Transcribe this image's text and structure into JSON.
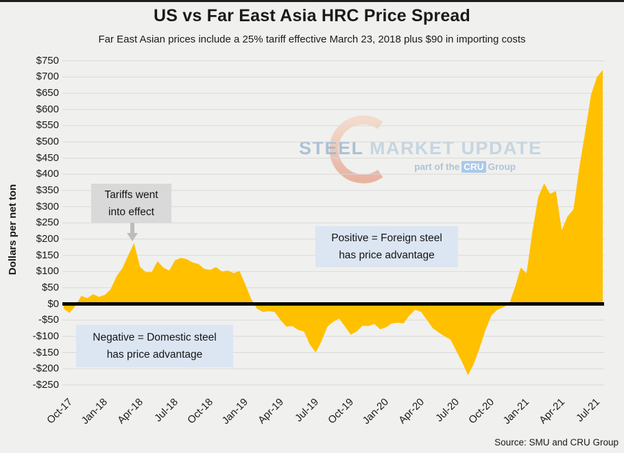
{
  "header": {
    "title": "US vs Far East Asia HRC Price Spread",
    "subtitle": "Far East Asian prices include a 25% tariff effective March 23, 2018 plus $90 in importing costs"
  },
  "annotations": {
    "tariff": {
      "line1": "Tariffs went",
      "line2": "into effect"
    },
    "positive": {
      "line1": "Positive = Foreign steel",
      "line2": "has price advantage"
    },
    "negative": {
      "line1": "Negative = Domestic steel",
      "line2": "has price advantage"
    }
  },
  "watermark": {
    "steel": "STEEL",
    "market_update": " MARKET UPDATE",
    "part_of_the": "part of the",
    "cru": "CRU",
    "group": "Group",
    "crescent_icon": "crescent-logo-icon"
  },
  "source": "Source: SMU and CRU Group",
  "colors": {
    "background": "#f0f0ee",
    "gridline": "#d9d9d9",
    "area": "#ffc000",
    "zero_line": "#000000",
    "note_gray_bg": "#d9d9d9",
    "note_blue_bg": "#dce6f2",
    "arrow": "#bdbdbd",
    "watermark_text": "#a9c2d8",
    "crescent_top": "#f5c0a0",
    "crescent_bottom": "#e0603a",
    "cru_badge_bg": "#a9c9ea"
  },
  "chart_data": {
    "type": "area",
    "title": "US vs Far East Asia HRC Price Spread",
    "xlabel": "",
    "ylabel": "Dollars per net ton",
    "ylim": [
      -250,
      750
    ],
    "grid": "horizontal",
    "legend": "none",
    "x_range": [
      "Oct-2017",
      "Aug-2021"
    ],
    "x_interval": "semi-monthly (two points per month)",
    "x_tick_labels": [
      "Oct-17",
      "Jan-18",
      "Apr-18",
      "Jul-18",
      "Oct-18",
      "Jan-19",
      "Apr-19",
      "Jul-19",
      "Oct-19",
      "Jan-20",
      "Apr-20",
      "Jul-20",
      "Oct-20",
      "Jan-21",
      "Apr-21",
      "Jul-21"
    ],
    "y_ticks": [
      750,
      700,
      650,
      600,
      550,
      500,
      450,
      400,
      350,
      300,
      250,
      200,
      150,
      100,
      50,
      0,
      -50,
      -100,
      -150,
      -200,
      -250
    ],
    "series": [
      {
        "name": "HRC price spread (US minus Far East Asia landed)",
        "units": "dollars per net ton",
        "values": [
          -15,
          -28,
          -5,
          25,
          18,
          30,
          22,
          28,
          45,
          85,
          110,
          150,
          188,
          115,
          98,
          98,
          132,
          112,
          103,
          135,
          142,
          138,
          128,
          123,
          108,
          105,
          114,
          100,
          103,
          95,
          102,
          60,
          15,
          -15,
          -25,
          -22,
          -25,
          -50,
          -70,
          -68,
          -80,
          -85,
          -125,
          -150,
          -115,
          -70,
          -55,
          -45,
          -70,
          -95,
          -85,
          -67,
          -68,
          -62,
          -78,
          -72,
          -60,
          -58,
          -60,
          -35,
          -18,
          -25,
          -50,
          -75,
          -88,
          -100,
          -110,
          -145,
          -180,
          -220,
          -185,
          -135,
          -80,
          -35,
          -18,
          -10,
          -2,
          50,
          112,
          95,
          225,
          330,
          372,
          340,
          348,
          228,
          270,
          292,
          420,
          530,
          645,
          700,
          722
        ]
      }
    ],
    "key_points": {
      "tariff_peak_apr_2018": 188,
      "trough_jul_2019": -150,
      "trough_sep_2020": -220,
      "peak_aug_2021": 722
    }
  }
}
